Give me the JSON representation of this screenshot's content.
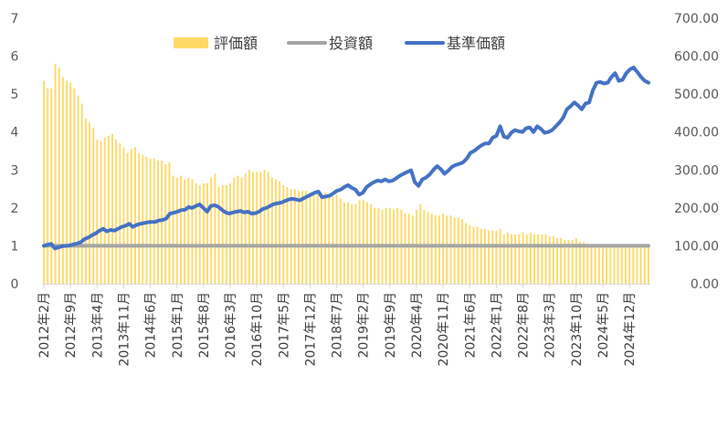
{
  "chart_data": {
    "type": "bar+line",
    "legend": {
      "placement": "top-center",
      "items": [
        {
          "label": "評価額",
          "kind": "bar",
          "color": "#FFD966"
        },
        {
          "label": "投資額",
          "kind": "line",
          "color": "#A5A5A5"
        },
        {
          "label": "基準価額",
          "kind": "line",
          "color": "#4472C4"
        }
      ]
    },
    "left_axis": {
      "ylim": [
        0,
        7
      ],
      "ticks": [
        "0",
        "1",
        "2",
        "3",
        "4",
        "5",
        "6",
        "7"
      ]
    },
    "right_axis": {
      "ylim": [
        0,
        700
      ],
      "ticks": [
        "0.00",
        "100.00",
        "200.00",
        "300.00",
        "400.00",
        "500.00",
        "600.00",
        "700.00"
      ]
    },
    "x_tick_labels": [
      "2012年2月",
      "2012年9月",
      "2013年4月",
      "2013年11月",
      "2014年6月",
      "2015年1月",
      "2015年8月",
      "2016年3月",
      "2016年10月",
      "2017年5月",
      "2017年12月",
      "2018年7月",
      "2019年2月",
      "2019年9月",
      "2020年4月",
      "2020年11月",
      "2021年6月",
      "2022年1月",
      "2022年8月",
      "2023年3月",
      "2023年10月",
      "2024年5月",
      "2024年12月"
    ],
    "x_start": "2012-02",
    "x_end": "2025-02",
    "series": [
      {
        "name": "評価額",
        "axis": "left",
        "type": "bar",
        "color": "#FFD966",
        "values": [
          5.35,
          5.15,
          5.15,
          5.8,
          5.7,
          5.45,
          5.35,
          5.3,
          5.15,
          4.95,
          4.75,
          4.35,
          4.25,
          4.1,
          3.8,
          3.75,
          3.85,
          3.9,
          3.95,
          3.8,
          3.7,
          3.6,
          3.45,
          3.55,
          3.6,
          3.45,
          3.4,
          3.35,
          3.3,
          3.3,
          3.25,
          3.25,
          3.15,
          3.2,
          2.85,
          2.8,
          2.85,
          2.75,
          2.8,
          2.75,
          2.65,
          2.6,
          2.65,
          2.65,
          2.8,
          2.9,
          2.55,
          2.6,
          2.6,
          2.65,
          2.8,
          2.85,
          2.8,
          2.9,
          3.0,
          2.95,
          2.95,
          2.95,
          3.0,
          2.95,
          2.8,
          2.75,
          2.7,
          2.6,
          2.55,
          2.5,
          2.5,
          2.45,
          2.45,
          2.45,
          2.4,
          2.4,
          2.35,
          2.35,
          2.4,
          2.3,
          2.3,
          2.35,
          2.25,
          2.15,
          2.15,
          2.1,
          2.1,
          2.2,
          2.2,
          2.15,
          2.1,
          2.0,
          2.0,
          1.95,
          2.0,
          2.0,
          1.95,
          2.0,
          1.95,
          1.85,
          1.85,
          1.8,
          1.95,
          2.1,
          1.95,
          1.9,
          1.85,
          1.8,
          1.8,
          1.85,
          1.8,
          1.8,
          1.75,
          1.75,
          1.7,
          1.6,
          1.55,
          1.5,
          1.5,
          1.45,
          1.45,
          1.4,
          1.4,
          1.4,
          1.45,
          1.3,
          1.35,
          1.3,
          1.3,
          1.3,
          1.35,
          1.3,
          1.35,
          1.3,
          1.3,
          1.3,
          1.3,
          1.25,
          1.25,
          1.2,
          1.2,
          1.15,
          1.15,
          1.15,
          1.2,
          1.1,
          1.1,
          1.05,
          1.05,
          1.05,
          1.05,
          1.0,
          1.0,
          1.0,
          1.0,
          1.0,
          1.0,
          1.0,
          1.0,
          1.0,
          1.0,
          1.0,
          1.0,
          1.0
        ]
      },
      {
        "name": "投資額",
        "axis": "left",
        "type": "line",
        "color": "#A5A5A5",
        "values_constant": 1.0
      },
      {
        "name": "基準価額",
        "axis": "right",
        "type": "line",
        "color": "#4472C4",
        "values": [
          100,
          103,
          105,
          93,
          96,
          99,
          100,
          101,
          104,
          106,
          110,
          118,
          122,
          128,
          133,
          140,
          145,
          138,
          142,
          140,
          145,
          150,
          153,
          158,
          150,
          155,
          158,
          160,
          162,
          163,
          163,
          167,
          168,
          172,
          185,
          187,
          190,
          194,
          195,
          202,
          200,
          205,
          209,
          200,
          190,
          205,
          207,
          203,
          195,
          188,
          185,
          188,
          190,
          192,
          188,
          190,
          185,
          186,
          190,
          197,
          200,
          205,
          210,
          212,
          214,
          218,
          222,
          224,
          222,
          220,
          225,
          230,
          235,
          240,
          243,
          228,
          230,
          232,
          238,
          245,
          248,
          255,
          260,
          253,
          248,
          235,
          240,
          255,
          262,
          268,
          272,
          270,
          275,
          270,
          272,
          278,
          285,
          290,
          295,
          299,
          268,
          258,
          275,
          280,
          288,
          300,
          310,
          302,
          290,
          298,
          308,
          313,
          316,
          320,
          330,
          345,
          350,
          358,
          365,
          370,
          370,
          385,
          390,
          415,
          388,
          385,
          398,
          405,
          402,
          400,
          410,
          412,
          400,
          415,
          408,
          398,
          400,
          405,
          415,
          425,
          438,
          460,
          468,
          478,
          470,
          460,
          475,
          478,
          510,
          530,
          532,
          528,
          530,
          545,
          555,
          535,
          538,
          555,
          565,
          570,
          558,
          545,
          535,
          530
        ]
      }
    ]
  }
}
